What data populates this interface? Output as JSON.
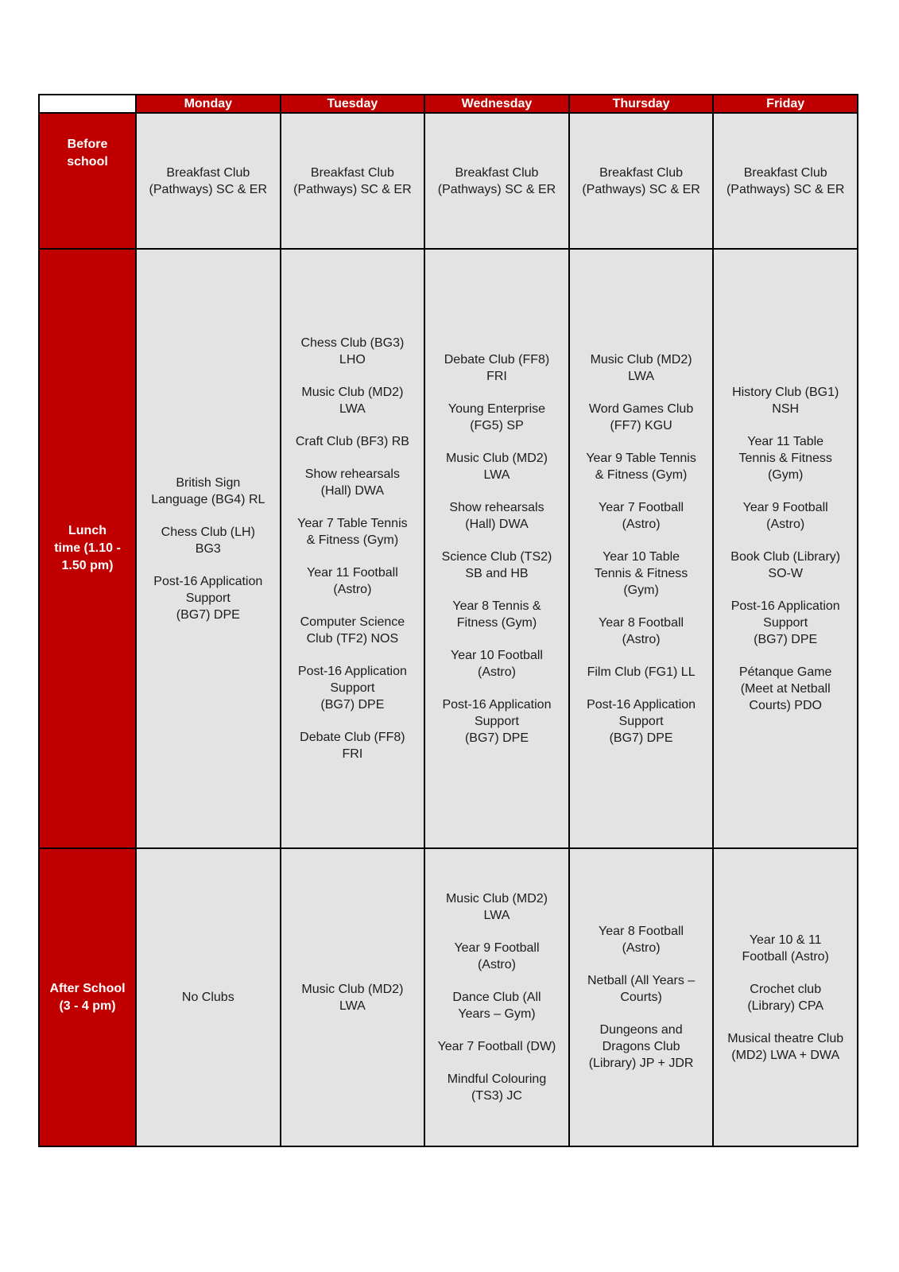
{
  "colors": {
    "red": "#c00000",
    "cell_bg": "#e3e3e3",
    "border": "#000000",
    "text": "#1c1c1c",
    "label_text": "#ffffff",
    "page_bg": "#ffffff"
  },
  "table": {
    "days": [
      "Monday",
      "Tuesday",
      "Wednesday",
      "Thursday",
      "Friday"
    ],
    "rows": [
      {
        "label": "Before\nschool",
        "cells": [
          [
            "Breakfast Club\n(Pathways) SC & ER"
          ],
          [
            "Breakfast Club\n(Pathways) SC & ER"
          ],
          [
            "Breakfast Club\n(Pathways) SC & ER"
          ],
          [
            "Breakfast Club\n(Pathways) SC & ER"
          ],
          [
            "Breakfast Club\n(Pathways) SC & ER"
          ]
        ]
      },
      {
        "label": "Lunch\ntime (1.10 -\n1.50 pm)",
        "cells": [
          [
            "British Sign\nLanguage (BG4) RL",
            "Chess Club (LH)\nBG3",
            "Post-16 Application\nSupport\n(BG7) DPE"
          ],
          [
            "Chess Club (BG3)\nLHO",
            "Music Club (MD2)\nLWA",
            "Craft Club (BF3) RB",
            "Show rehearsals\n(Hall) DWA",
            "Year 7 Table Tennis\n& Fitness (Gym)",
            "Year 11 Football\n(Astro)",
            "Computer Science\nClub (TF2) NOS",
            "Post-16 Application\nSupport\n(BG7) DPE",
            "Debate Club (FF8)\nFRI"
          ],
          [
            "Debate Club (FF8)\nFRI",
            "Young Enterprise\n(FG5) SP",
            "Music Club (MD2)\nLWA",
            "Show rehearsals\n(Hall) DWA",
            "Science Club (TS2)\nSB and HB",
            "Year 8 Tennis &\nFitness (Gym)",
            "Year 10 Football\n(Astro)",
            "Post-16 Application\nSupport\n(BG7) DPE"
          ],
          [
            "Music Club (MD2)\nLWA",
            "Word Games Club\n(FF7) KGU",
            "Year 9 Table Tennis\n& Fitness (Gym)",
            "Year 7 Football\n(Astro)",
            "Year 10 Table\nTennis & Fitness\n(Gym)",
            "Year 8 Football\n(Astro)",
            "Film Club (FG1) LL",
            "Post-16 Application\nSupport\n(BG7) DPE"
          ],
          [
            "History Club (BG1)\nNSH",
            "Year 11 Table\nTennis & Fitness\n(Gym)",
            "Year 9 Football\n(Astro)",
            "Book Club (Library)\nSO-W",
            "Post-16 Application\nSupport\n(BG7) DPE",
            "Pétanque Game\n(Meet at Netball\nCourts) PDO"
          ]
        ]
      },
      {
        "label": "After School\n(3 - 4 pm)",
        "cells": [
          [
            "No Clubs"
          ],
          [
            "Music Club (MD2)\nLWA"
          ],
          [
            "Music Club (MD2)\nLWA",
            "Year 9 Football\n(Astro)",
            "Dance Club (All\nYears – Gym)",
            "Year 7 Football (DW)",
            "Mindful Colouring\n(TS3) JC"
          ],
          [
            "Year 8 Football\n(Astro)",
            "Netball (All Years –\nCourts)",
            "Dungeons and\nDragons Club\n(Library) JP + JDR"
          ],
          [
            "Year 10 & 11\nFootball (Astro)",
            "Crochet club\n(Library) CPA",
            "Musical theatre Club\n(MD2) LWA + DWA"
          ]
        ]
      }
    ]
  }
}
